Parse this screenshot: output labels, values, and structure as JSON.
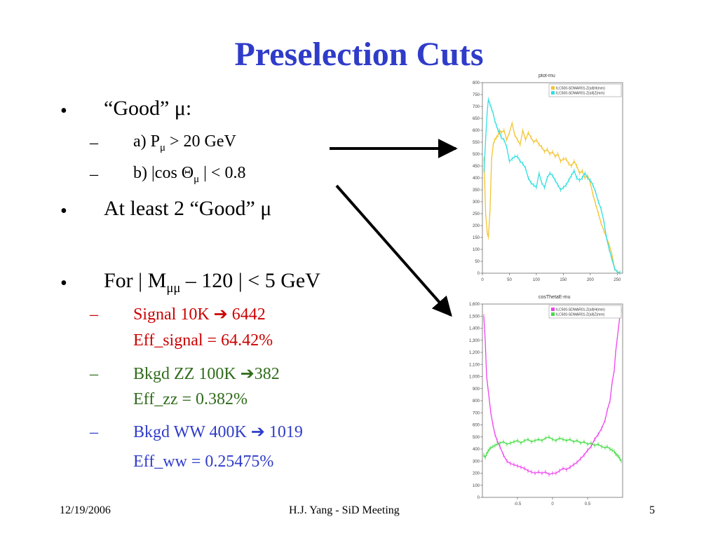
{
  "slide": {
    "title": "Preselection Cuts",
    "bullets": [
      {
        "text_pre": "“Good” ",
        "text_mu": "μ",
        "text_post": ":"
      },
      {
        "text": "At least 2 “Good” μ"
      },
      {
        "text_pre": "For | M",
        "text_sub": "μμ",
        "text_post": " – 120 | < 5 GeV"
      }
    ],
    "subs1": {
      "a_pre": "a) P",
      "a_sub": "μ",
      "a_post": " > 20 GeV",
      "b_pre": "b) |cos Θ",
      "b_sub": "μ",
      "b_post": " | < 0.8"
    },
    "results": {
      "signal_line1": "Signal 10K ",
      "signal_arrow": "➔",
      "signal_line1b": " 6442",
      "signal_line2": "Eff_signal = 64.42%",
      "zz_line1": "Bkgd ZZ 100K ",
      "zz_arrow": "➔",
      "zz_line1b": "382",
      "zz_line2": "Eff_zz = 0.382%",
      "ww_line1": "Bkgd WW 400K ",
      "ww_arrow": "➔",
      "ww_line1b": " 1019",
      "ww_line2": "Eff_ww = 0.25475%"
    },
    "dash": "–",
    "bullet_char": "•",
    "footer": {
      "date": "12/19/2006",
      "center": "H.J. Yang - SiD Meeting",
      "page": "5"
    }
  },
  "colors": {
    "title": "#2f3cc9",
    "signal": "#cc0000",
    "zz": "#2f6b1a",
    "ww": "#2f3cc9",
    "plot1_series_a": "#f4c430",
    "plot1_series_b": "#33e0e0",
    "plot2_series_a": "#ee44ee",
    "plot2_series_b": "#44dd44"
  },
  "chart_data": [
    {
      "type": "line",
      "title": "ptot-mu",
      "legend": [
        "ILC500-SDMAR01-Z(all)H(mm)",
        "ILC500-SDMAR01-Z(all)Z(mm)"
      ],
      "legend_position": "top-right",
      "xlim": [
        0,
        260
      ],
      "ylim": [
        0,
        800
      ],
      "xticks": [
        "0",
        "50",
        "100",
        "150",
        "200",
        "250"
      ],
      "yticks": [
        "0",
        "50",
        "100",
        "150",
        "200",
        "250",
        "300",
        "350",
        "400",
        "450",
        "500",
        "550",
        "600",
        "650",
        "700",
        "750",
        "800"
      ],
      "series": [
        {
          "name": "ILC500-SDMAR01-Z(all)H(mm)",
          "x": [
            3,
            6,
            9,
            11,
            14,
            17,
            20,
            23,
            26,
            29,
            32,
            35,
            40,
            45,
            50,
            55,
            60,
            65,
            70,
            75,
            80,
            85,
            90,
            95,
            100,
            105,
            110,
            115,
            120,
            125,
            130,
            135,
            140,
            145,
            150,
            155,
            160,
            165,
            170,
            175,
            180,
            185,
            190,
            195,
            200,
            205,
            210,
            215,
            220,
            225,
            230,
            235,
            240,
            245,
            250,
            255
          ],
          "y": [
            480,
            250,
            170,
            150,
            260,
            480,
            540,
            560,
            570,
            580,
            600,
            590,
            600,
            560,
            590,
            630,
            580,
            560,
            540,
            600,
            560,
            590,
            570,
            550,
            560,
            540,
            530,
            510,
            520,
            500,
            510,
            490,
            500,
            470,
            480,
            480,
            460,
            450,
            470,
            450,
            420,
            430,
            400,
            410,
            380,
            330,
            290,
            250,
            210,
            180,
            150,
            120,
            80,
            20,
            5,
            3
          ]
        },
        {
          "name": "ILC500-SDMAR01-Z(all)Z(mm)",
          "x": [
            3,
            6,
            9,
            11,
            14,
            17,
            20,
            23,
            26,
            29,
            32,
            35,
            40,
            45,
            50,
            55,
            60,
            65,
            70,
            75,
            80,
            85,
            90,
            95,
            100,
            105,
            110,
            115,
            120,
            125,
            130,
            135,
            140,
            145,
            150,
            155,
            160,
            165,
            170,
            175,
            180,
            185,
            190,
            195,
            200,
            205,
            210,
            215,
            220,
            225,
            230,
            235,
            240,
            245,
            250,
            255
          ],
          "y": [
            430,
            560,
            680,
            730,
            710,
            690,
            670,
            640,
            620,
            600,
            590,
            570,
            560,
            530,
            470,
            480,
            490,
            490,
            470,
            460,
            440,
            400,
            380,
            370,
            360,
            420,
            380,
            360,
            400,
            420,
            410,
            390,
            370,
            350,
            360,
            370,
            390,
            410,
            430,
            400,
            390,
            400,
            420,
            400,
            390,
            370,
            340,
            300,
            270,
            220,
            150,
            100,
            60,
            20,
            5,
            3
          ]
        }
      ]
    },
    {
      "type": "line",
      "title": "cosThetaE-mu",
      "legend": [
        "ILC500-SDMAR01-Z(all)H(mm)",
        "ILC500-SDMAR01-Z(all)Z(mm)"
      ],
      "legend_position": "top-right",
      "xlim": [
        -1,
        1
      ],
      "ylim": [
        0,
        1600
      ],
      "xticks": [
        "-0.5",
        "0",
        "0.5"
      ],
      "yticks": [
        "0",
        "100",
        "200",
        "300",
        "400",
        "500",
        "600",
        "700",
        "800",
        "900",
        "1,000",
        "1,100",
        "1,200",
        "1,300",
        "1,400",
        "1,500",
        "1,600"
      ],
      "series": [
        {
          "name": "ILC500-SDMAR01-Z(all)H(mm)",
          "x": [
            -0.98,
            -0.96,
            -0.94,
            -0.92,
            -0.9,
            -0.88,
            -0.85,
            -0.82,
            -0.79,
            -0.75,
            -0.7,
            -0.65,
            -0.6,
            -0.55,
            -0.5,
            -0.45,
            -0.4,
            -0.35,
            -0.3,
            -0.25,
            -0.2,
            -0.15,
            -0.1,
            -0.05,
            0,
            0.05,
            0.1,
            0.15,
            0.2,
            0.25,
            0.3,
            0.35,
            0.4,
            0.45,
            0.5,
            0.55,
            0.6,
            0.65,
            0.7,
            0.75,
            0.78,
            0.82,
            0.85,
            0.88,
            0.9,
            0.92,
            0.94,
            0.96,
            0.98
          ],
          "y": [
            1500,
            1300,
            1000,
            900,
            800,
            700,
            600,
            520,
            470,
            420,
            350,
            300,
            280,
            270,
            260,
            250,
            240,
            220,
            210,
            200,
            210,
            200,
            210,
            190,
            200,
            200,
            220,
            240,
            230,
            250,
            270,
            290,
            320,
            350,
            390,
            420,
            480,
            520,
            570,
            640,
            720,
            800,
            950,
            1050,
            1200,
            1300,
            1400,
            1500,
            1550
          ]
        },
        {
          "name": "ILC500-SDMAR01-Z(all)Z(mm)",
          "x": [
            -0.98,
            -0.96,
            -0.94,
            -0.92,
            -0.9,
            -0.88,
            -0.85,
            -0.82,
            -0.79,
            -0.75,
            -0.7,
            -0.65,
            -0.6,
            -0.55,
            -0.5,
            -0.45,
            -0.4,
            -0.35,
            -0.3,
            -0.25,
            -0.2,
            -0.15,
            -0.1,
            -0.05,
            0,
            0.05,
            0.1,
            0.15,
            0.2,
            0.25,
            0.3,
            0.35,
            0.4,
            0.45,
            0.5,
            0.55,
            0.6,
            0.65,
            0.7,
            0.75,
            0.78,
            0.82,
            0.85,
            0.88,
            0.9,
            0.92,
            0.94,
            0.96,
            0.98
          ],
          "y": [
            350,
            330,
            360,
            380,
            400,
            410,
            420,
            430,
            440,
            450,
            460,
            440,
            450,
            460,
            470,
            450,
            470,
            480,
            460,
            470,
            480,
            470,
            490,
            500,
            480,
            470,
            490,
            480,
            470,
            480,
            460,
            470,
            450,
            460,
            440,
            450,
            430,
            440,
            420,
            410,
            420,
            400,
            390,
            380,
            360,
            350,
            340,
            320,
            300
          ]
        }
      ]
    }
  ]
}
